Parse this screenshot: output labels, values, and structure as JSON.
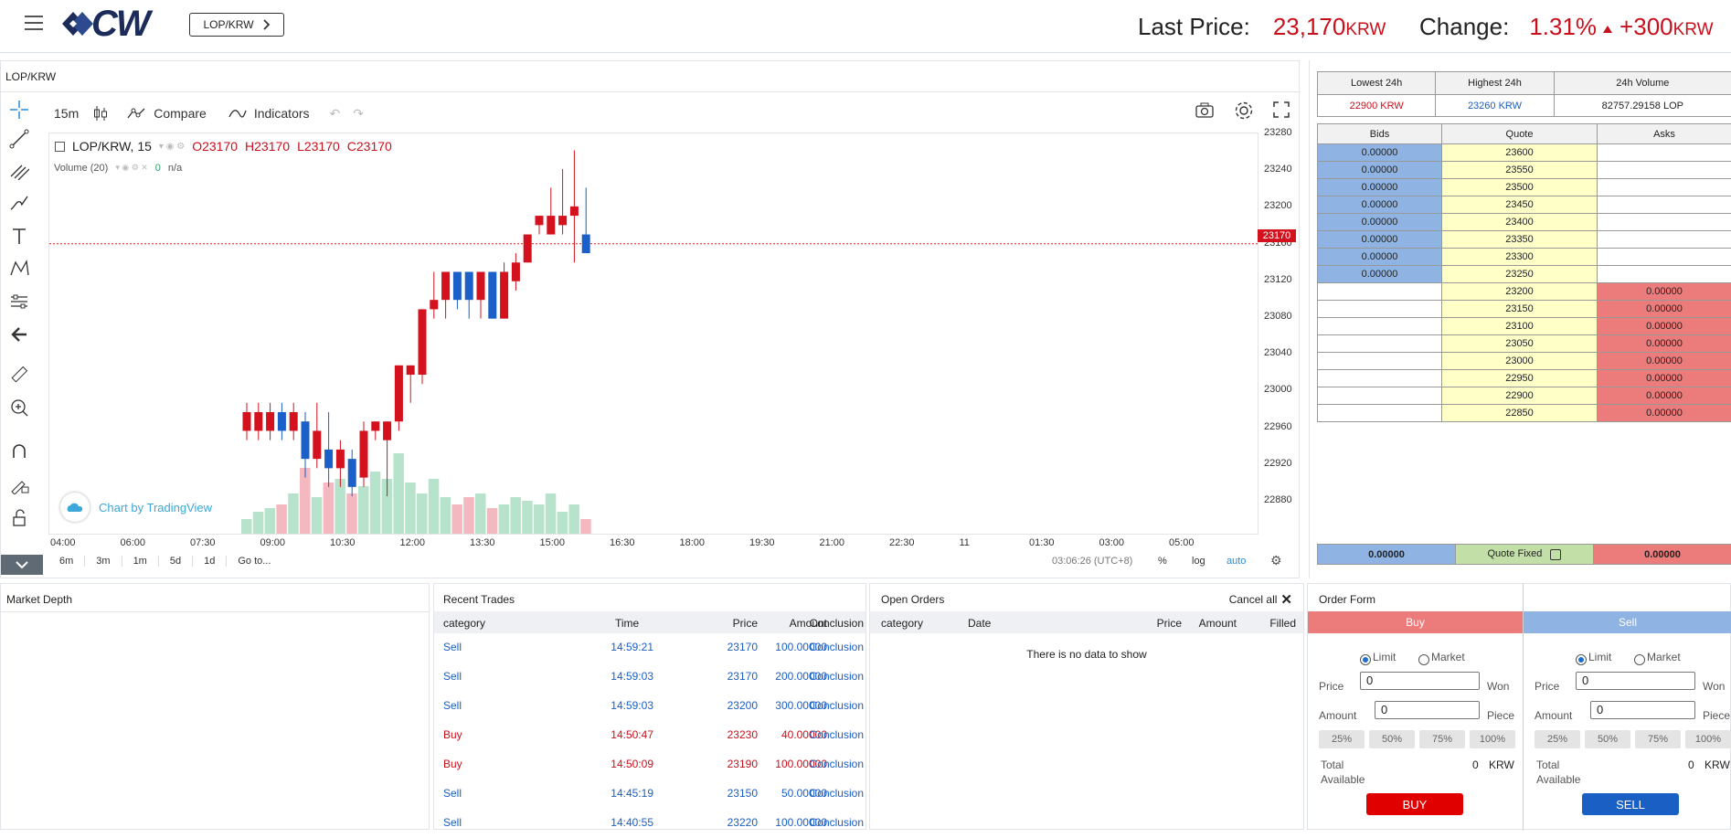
{
  "header": {
    "pair_button": "LOP/KRW",
    "last_price_label": "Last Price:",
    "last_price_value": "23,170",
    "last_price_unit": "KRW",
    "change_label": "Change:",
    "change_pct": "1.31%",
    "change_value": "+300",
    "change_unit": "KRW"
  },
  "chart_panel": {
    "title": "LOP/KRW",
    "interval": "15m",
    "compare": "Compare",
    "indicators": "Indicators",
    "symbol": "LOP/KRW, 15",
    "ohlc": {
      "o": "O23170",
      "h": "H23170",
      "l": "L23170",
      "c": "C23170"
    },
    "volume_label": "Volume (20)",
    "volume_value": "0",
    "volume_na": "n/a",
    "watermark": "Chart by TradingView",
    "last_price_tag": "23170",
    "y_ticks": [
      "23280",
      "23240",
      "23200",
      "23160",
      "23120",
      "23080",
      "23040",
      "23000",
      "22960",
      "22920",
      "22880"
    ],
    "x_ticks": [
      "04:00",
      "06:00",
      "07:30",
      "09:00",
      "10:30",
      "12:00",
      "13:30",
      "15:00",
      "16:30",
      "18:00",
      "19:30",
      "21:00",
      "22:30",
      "11",
      "01:30",
      "03:00",
      "05:00"
    ],
    "ranges": [
      "6m",
      "3m",
      "1m",
      "5d",
      "1d"
    ],
    "goto": "Go to...",
    "time": "03:06:26 (UTC+8)",
    "pct": "%",
    "log": "log",
    "auto": "auto"
  },
  "chart_data": {
    "type": "candlestick",
    "interval": "15m",
    "ylim": [
      22860,
      23290
    ],
    "candles": [
      {
        "t": "07:45",
        "o": 22970,
        "h": 23000,
        "l": 22960,
        "c": 22990
      },
      {
        "t": "08:00",
        "o": 22970,
        "h": 23000,
        "l": 22960,
        "c": 22990
      },
      {
        "t": "08:15",
        "o": 22970,
        "h": 23000,
        "l": 22960,
        "c": 22990
      },
      {
        "t": "08:30",
        "o": 22990,
        "h": 23000,
        "l": 22960,
        "c": 22970
      },
      {
        "t": "08:45",
        "o": 22970,
        "h": 23000,
        "l": 22960,
        "c": 22990
      },
      {
        "t": "09:00",
        "o": 22980,
        "h": 22990,
        "l": 22920,
        "c": 22940
      },
      {
        "t": "09:15",
        "o": 22940,
        "h": 23000,
        "l": 22930,
        "c": 22970
      },
      {
        "t": "09:30",
        "o": 22950,
        "h": 22990,
        "l": 22910,
        "c": 22930
      },
      {
        "t": "09:45",
        "o": 22930,
        "h": 22960,
        "l": 22910,
        "c": 22950
      },
      {
        "t": "10:00",
        "o": 22940,
        "h": 22950,
        "l": 22900,
        "c": 22910
      },
      {
        "t": "10:15",
        "o": 22920,
        "h": 22980,
        "l": 22910,
        "c": 22970
      },
      {
        "t": "10:30",
        "o": 22970,
        "h": 22980,
        "l": 22960,
        "c": 22980
      },
      {
        "t": "10:45",
        "o": 22960,
        "h": 22980,
        "l": 22900,
        "c": 22980
      },
      {
        "t": "11:00",
        "o": 22980,
        "h": 23040,
        "l": 22970,
        "c": 23040
      },
      {
        "t": "11:15",
        "o": 23030,
        "h": 23040,
        "l": 23000,
        "c": 23040
      },
      {
        "t": "11:30",
        "o": 23030,
        "h": 23100,
        "l": 23020,
        "c": 23100
      },
      {
        "t": "11:45",
        "o": 23100,
        "h": 23140,
        "l": 23090,
        "c": 23110
      },
      {
        "t": "12:00",
        "o": 23110,
        "h": 23140,
        "l": 23090,
        "c": 23140
      },
      {
        "t": "12:15",
        "o": 23140,
        "h": 23140,
        "l": 23100,
        "c": 23110
      },
      {
        "t": "12:30",
        "o": 23140,
        "h": 23140,
        "l": 23090,
        "c": 23110
      },
      {
        "t": "12:45",
        "o": 23110,
        "h": 23140,
        "l": 23090,
        "c": 23140
      },
      {
        "t": "13:00",
        "o": 23140,
        "h": 23140,
        "l": 23090,
        "c": 23090
      },
      {
        "t": "13:15",
        "o": 23090,
        "h": 23150,
        "l": 23090,
        "c": 23140
      },
      {
        "t": "13:30",
        "o": 23130,
        "h": 23160,
        "l": 23120,
        "c": 23150
      },
      {
        "t": "13:45",
        "o": 23150,
        "h": 23180,
        "l": 23150,
        "c": 23180
      },
      {
        "t": "14:00",
        "o": 23190,
        "h": 23200,
        "l": 23180,
        "c": 23200
      },
      {
        "t": "14:15",
        "o": 23180,
        "h": 23230,
        "l": 23180,
        "c": 23200
      },
      {
        "t": "14:30",
        "o": 23190,
        "h": 23250,
        "l": 23180,
        "c": 23200
      },
      {
        "t": "14:45",
        "o": 23200,
        "h": 23270,
        "l": 23150,
        "c": 23210
      },
      {
        "t": "15:00",
        "o": 23180,
        "h": 23230,
        "l": 23160,
        "c": 23160
      }
    ],
    "volume": [
      8,
      12,
      14,
      16,
      22,
      36,
      20,
      28,
      30,
      22,
      26,
      34,
      30,
      44,
      28,
      22,
      30,
      20,
      16,
      20,
      22,
      14,
      16,
      20,
      18,
      16,
      22,
      12,
      16,
      8
    ]
  },
  "stats": {
    "headers": [
      "Lowest 24h",
      "Highest 24h",
      "24h Volume"
    ],
    "values": [
      "22900 KRW",
      "23260 KRW",
      "82757.29158 LOP"
    ]
  },
  "orderbook": {
    "headers": [
      "Bids",
      "Quote",
      "Asks"
    ],
    "bid_rows": [
      {
        "bid": "0.00000",
        "quote": "23600"
      },
      {
        "bid": "0.00000",
        "quote": "23550"
      },
      {
        "bid": "0.00000",
        "quote": "23500"
      },
      {
        "bid": "0.00000",
        "quote": "23450"
      },
      {
        "bid": "0.00000",
        "quote": "23400"
      },
      {
        "bid": "0.00000",
        "quote": "23350"
      },
      {
        "bid": "0.00000",
        "quote": "23300"
      },
      {
        "bid": "0.00000",
        "quote": "23250"
      }
    ],
    "ask_rows": [
      {
        "quote": "23200",
        "ask": "0.00000"
      },
      {
        "quote": "23150",
        "ask": "0.00000"
      },
      {
        "quote": "23100",
        "ask": "0.00000"
      },
      {
        "quote": "23050",
        "ask": "0.00000"
      },
      {
        "quote": "23000",
        "ask": "0.00000"
      },
      {
        "quote": "22950",
        "ask": "0.00000"
      },
      {
        "quote": "22900",
        "ask": "0.00000"
      },
      {
        "quote": "22850",
        "ask": "0.00000"
      }
    ],
    "footer_bid": "0.00000",
    "footer_label": "Quote Fixed",
    "footer_ask": "0.00000"
  },
  "market_depth": {
    "title": "Market Depth"
  },
  "recent_trades": {
    "title": "Recent Trades",
    "headers": [
      "category",
      "Time",
      "Price",
      "Amount",
      "Conclusion"
    ],
    "rows": [
      {
        "cat": "Sell",
        "time": "14:59:21",
        "price": "23170",
        "amount": "100.00000",
        "conc": "Conclusion"
      },
      {
        "cat": "Sell",
        "time": "14:59:03",
        "price": "23170",
        "amount": "200.00000",
        "conc": "Conclusion"
      },
      {
        "cat": "Sell",
        "time": "14:59:03",
        "price": "23200",
        "amount": "300.00000",
        "conc": "Conclusion"
      },
      {
        "cat": "Buy",
        "time": "14:50:47",
        "price": "23230",
        "amount": "40.00000",
        "conc": "Conclusion"
      },
      {
        "cat": "Buy",
        "time": "14:50:09",
        "price": "23190",
        "amount": "100.00000",
        "conc": "Conclusion"
      },
      {
        "cat": "Sell",
        "time": "14:45:19",
        "price": "23150",
        "amount": "50.00000",
        "conc": "Conclusion"
      },
      {
        "cat": "Sell",
        "time": "14:40:55",
        "price": "23220",
        "amount": "100.00000",
        "conc": "Conclusion"
      }
    ]
  },
  "open_orders": {
    "title": "Open Orders",
    "cancel_all": "Cancel all",
    "headers": [
      "category",
      "Date",
      "Price",
      "Amount",
      "Filled"
    ],
    "empty": "There is no data to show"
  },
  "order_form": {
    "title": "Order Form",
    "buy": {
      "header": "Buy",
      "limit": "Limit",
      "market": "Market",
      "price_label": "Price",
      "price_value": "0",
      "price_unit": "Won",
      "amount_label": "Amount",
      "amount_value": "0",
      "amount_unit": "Piece",
      "pcts": [
        "25%",
        "50%",
        "75%",
        "100%"
      ],
      "total_label": "Total",
      "available_label": "Available",
      "total_value": "0",
      "total_unit": "KRW",
      "button": "BUY"
    },
    "sell": {
      "header": "Sell",
      "limit": "Limit",
      "market": "Market",
      "price_label": "Price",
      "price_value": "0",
      "price_unit": "Won",
      "amount_label": "Amount",
      "amount_value": "0",
      "amount_unit": "Piece",
      "pcts": [
        "25%",
        "50%",
        "75%",
        "100%"
      ],
      "total_label": "Total",
      "available_label": "Available",
      "total_value": "0",
      "total_unit": "KRW",
      "button": "SELL"
    }
  },
  "colors": {
    "up": "#d3121e",
    "down": "#1b5fc9",
    "vol_up": "#b7e2cc",
    "vol_down": "#f4b8c0",
    "bid": "#8fb4e3",
    "ask": "#ec7b7b",
    "quote": "#ffffc8"
  }
}
